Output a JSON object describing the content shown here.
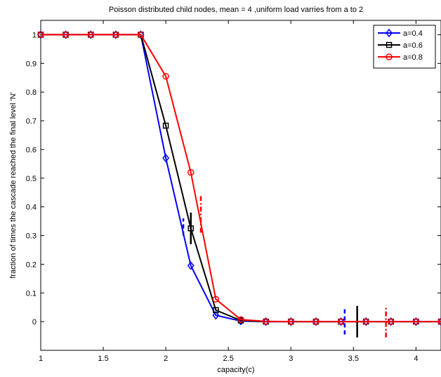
{
  "chart_data": {
    "type": "line",
    "title": "Poisson distributed child nodes, mean = 4 ,uniform load varries from a to 2",
    "xlabel": "capacity(c)",
    "ylabel": "fraction of times the cascade reached the final level 'N'",
    "xlim": [
      1,
      4.2
    ],
    "ylim": [
      -0.1,
      1.05
    ],
    "xticks": [
      1,
      1.5,
      2,
      2.5,
      3,
      3.5,
      4
    ],
    "xtick_labels": [
      "1",
      "1.5",
      "2",
      "2.5",
      "3",
      "3.5",
      "4"
    ],
    "yticks": [
      0,
      0.1,
      0.2,
      0.3,
      0.4,
      0.5,
      0.6,
      0.7,
      0.8,
      0.9,
      1
    ],
    "ytick_labels": [
      "0",
      "0.1",
      "0.2",
      "0.3",
      "0.4",
      "0.5",
      "0.6",
      "0.7",
      "0.8",
      "0.9",
      "1"
    ],
    "grid": false,
    "legend_position": "top-right",
    "x": [
      1,
      1.2,
      1.4,
      1.6,
      1.8,
      2,
      2.2,
      2.4,
      2.6,
      2.8,
      3,
      3.2,
      3.4,
      3.6,
      3.8,
      4,
      4.2
    ],
    "series": [
      {
        "name": "a=0.4",
        "color": "#0000ff",
        "marker": "diamond",
        "values": [
          1,
          1,
          1,
          1,
          1,
          0.57,
          0.195,
          0.022,
          0.002,
          0,
          0,
          0,
          0,
          0,
          0,
          0,
          0
        ],
        "error_bars": [
          {
            "x": 2.14,
            "low": 0.3,
            "high": 0.36,
            "style": "dashed"
          },
          {
            "x": 3.43,
            "low": -0.045,
            "high": 0.05,
            "style": "dashed"
          }
        ]
      },
      {
        "name": "a=0.6",
        "color": "#000000",
        "marker": "square",
        "values": [
          1,
          1,
          1,
          1,
          1,
          0.683,
          0.325,
          0.04,
          0.004,
          0,
          0,
          0,
          0,
          0,
          0,
          0,
          0
        ],
        "error_bars": [
          {
            "x": 2.2,
            "low": 0.27,
            "high": 0.38,
            "style": "solid"
          },
          {
            "x": 3.53,
            "low": -0.055,
            "high": 0.055,
            "style": "solid"
          }
        ]
      },
      {
        "name": "a=0.8",
        "color": "#ff0000",
        "marker": "circle",
        "values": [
          1,
          1,
          1,
          1,
          1,
          0.855,
          0.52,
          0.078,
          0.007,
          0.001,
          0,
          0,
          0,
          0,
          0,
          0,
          0
        ],
        "error_bars": [
          {
            "x": 2.28,
            "low": 0.31,
            "high": 0.445,
            "style": "dashdot"
          },
          {
            "x": 3.76,
            "low": -0.055,
            "high": 0.05,
            "style": "dashdot"
          }
        ]
      }
    ]
  }
}
